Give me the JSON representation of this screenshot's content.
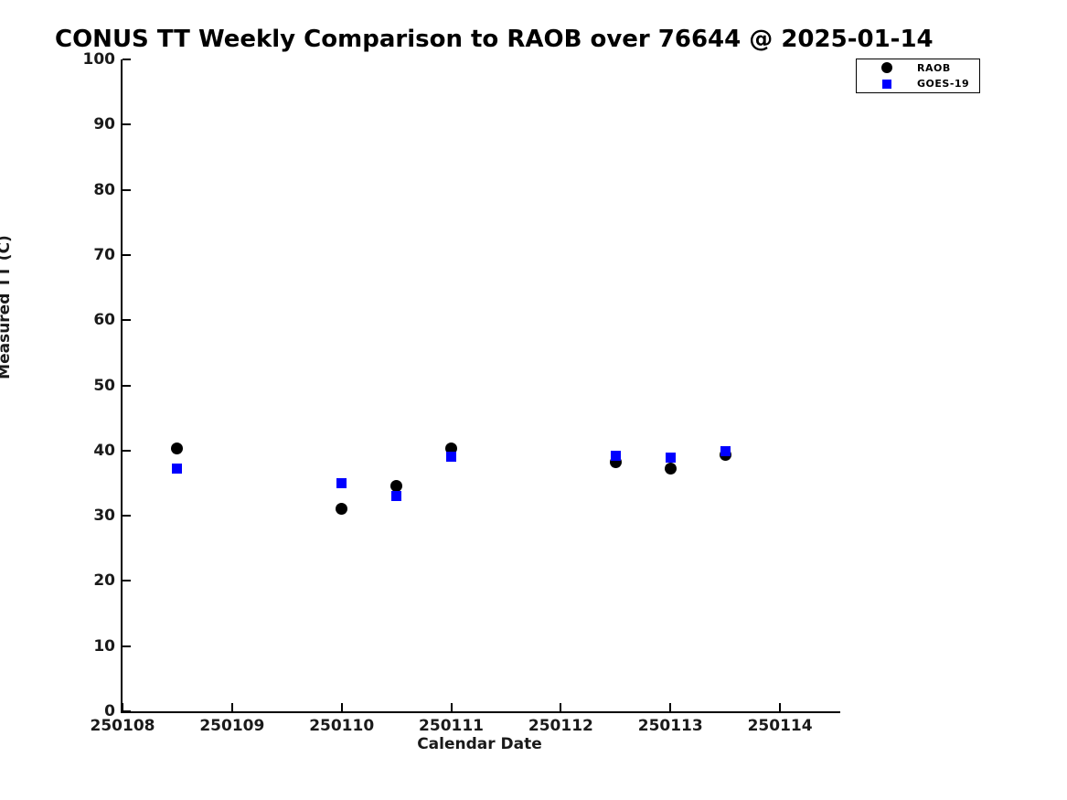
{
  "colors": {
    "background": "#ffffff",
    "axis": "#000000",
    "raob": "#000000",
    "goes19": "#0000ff"
  },
  "chart_data": {
    "type": "scatter",
    "title": "CONUS TT Weekly Comparison to RAOB over 76644 @ 2025-01-14",
    "xlabel": "Calendar Date",
    "ylabel": "Measured TT (C)",
    "xlim": [
      250108,
      250114.55
    ],
    "ylim": [
      0,
      100
    ],
    "xticks": [
      250108,
      250109,
      250110,
      250111,
      250112,
      250113,
      250114
    ],
    "yticks": [
      0,
      10,
      20,
      30,
      40,
      50,
      60,
      70,
      80,
      90,
      100
    ],
    "grid": false,
    "tick_direction": "in",
    "legend_position": "top-right-outside",
    "series": [
      {
        "name": "RAOB",
        "marker": "circle",
        "color": "#000000",
        "points": [
          [
            250108.5,
            40.3
          ],
          [
            250110.0,
            31.0
          ],
          [
            250110.5,
            34.6
          ],
          [
            250111.0,
            40.3
          ],
          [
            250112.5,
            38.2
          ],
          [
            250113.0,
            37.2
          ],
          [
            250113.5,
            39.3
          ]
        ]
      },
      {
        "name": "GOES-19",
        "marker": "square",
        "color": "#0000ff",
        "points": [
          [
            250108.5,
            37.3
          ],
          [
            250110.0,
            35.0
          ],
          [
            250110.5,
            33.0
          ],
          [
            250111.0,
            39.1
          ],
          [
            250112.5,
            39.2
          ],
          [
            250113.0,
            38.9
          ],
          [
            250113.5,
            39.9
          ]
        ]
      }
    ]
  }
}
